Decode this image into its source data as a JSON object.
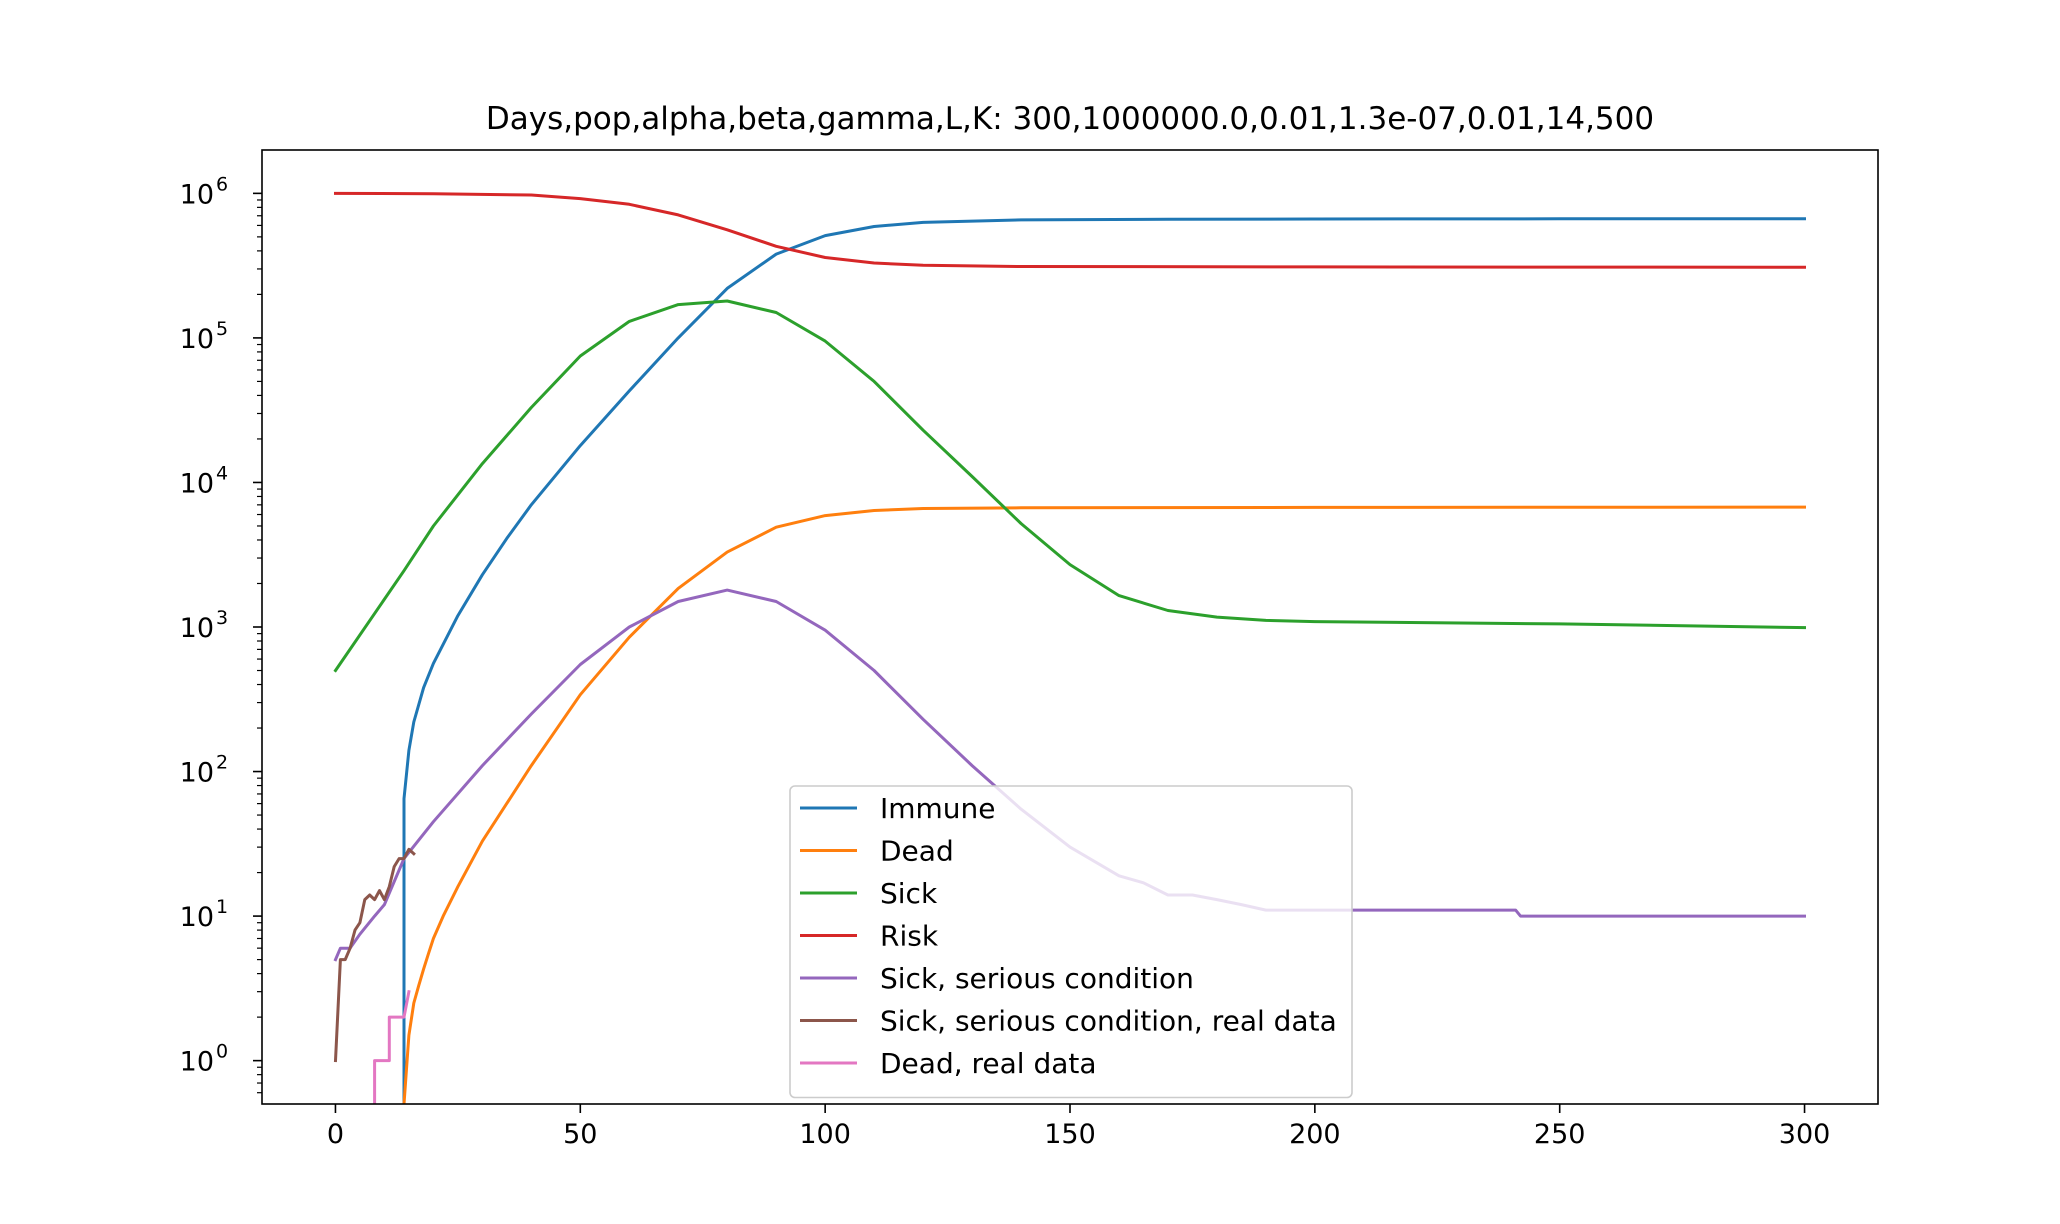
{
  "chart_data": {
    "type": "line",
    "title": "Days,pop,alpha,beta,gamma,L,K: 300,1000000.0,0.01,1.3e-07,0.01,14,500",
    "xlabel": "",
    "ylabel": "",
    "xlim": [
      -15,
      315
    ],
    "ylog": true,
    "ylim_log10": [
      -0.3,
      6.3
    ],
    "x_ticks": [
      0,
      50,
      100,
      150,
      200,
      250,
      300
    ],
    "y_ticks_exponents": [
      0,
      1,
      2,
      3,
      4,
      5,
      6
    ],
    "y_tick_base": "10",
    "grid": false,
    "legend_position": "lower center",
    "series": [
      {
        "name": "Immune",
        "color": "#1f77b4",
        "points": [
          [
            14,
            0.1
          ],
          [
            14,
            65
          ],
          [
            15,
            140
          ],
          [
            16,
            220
          ],
          [
            18,
            380
          ],
          [
            20,
            560
          ],
          [
            25,
            1200
          ],
          [
            30,
            2300
          ],
          [
            35,
            4100
          ],
          [
            40,
            7000
          ],
          [
            50,
            18000
          ],
          [
            60,
            43000
          ],
          [
            70,
            100000
          ],
          [
            80,
            220000
          ],
          [
            90,
            380000
          ],
          [
            100,
            510000
          ],
          [
            110,
            590000
          ],
          [
            120,
            630000
          ],
          [
            140,
            655000
          ],
          [
            170,
            662000
          ],
          [
            200,
            665000
          ],
          [
            250,
            667000
          ],
          [
            300,
            668000
          ]
        ]
      },
      {
        "name": "Dead",
        "color": "#ff7f0e",
        "points": [
          [
            14,
            0.3
          ],
          [
            14,
            0.5
          ],
          [
            15,
            1.5
          ],
          [
            16,
            2.5
          ],
          [
            17,
            3.3
          ],
          [
            18,
            4.3
          ],
          [
            19,
            5.5
          ],
          [
            20,
            7
          ],
          [
            22,
            10
          ],
          [
            25,
            16
          ],
          [
            30,
            33
          ],
          [
            40,
            110
          ],
          [
            50,
            340
          ],
          [
            60,
            850
          ],
          [
            70,
            1850
          ],
          [
            80,
            3300
          ],
          [
            90,
            4900
          ],
          [
            100,
            5900
          ],
          [
            110,
            6400
          ],
          [
            120,
            6600
          ],
          [
            140,
            6680
          ],
          [
            200,
            6720
          ],
          [
            300,
            6750
          ]
        ]
      },
      {
        "name": "Sick",
        "color": "#2ca02c",
        "points": [
          [
            0,
            500
          ],
          [
            14,
            2450
          ],
          [
            20,
            5000
          ],
          [
            30,
            13500
          ],
          [
            40,
            33000
          ],
          [
            50,
            75000
          ],
          [
            60,
            130000
          ],
          [
            70,
            170000
          ],
          [
            80,
            180000
          ],
          [
            90,
            150000
          ],
          [
            100,
            95000
          ],
          [
            110,
            50000
          ],
          [
            120,
            23000
          ],
          [
            130,
            11000
          ],
          [
            140,
            5200
          ],
          [
            150,
            2700
          ],
          [
            160,
            1650
          ],
          [
            170,
            1300
          ],
          [
            180,
            1170
          ],
          [
            190,
            1110
          ],
          [
            200,
            1090
          ],
          [
            250,
            1050
          ],
          [
            300,
            990
          ]
        ]
      },
      {
        "name": "Risk",
        "color": "#d62728",
        "points": [
          [
            0,
            1000000
          ],
          [
            20,
            995000
          ],
          [
            40,
            975000
          ],
          [
            50,
            920000
          ],
          [
            60,
            840000
          ],
          [
            70,
            710000
          ],
          [
            80,
            560000
          ],
          [
            90,
            430000
          ],
          [
            100,
            360000
          ],
          [
            110,
            330000
          ],
          [
            120,
            318000
          ],
          [
            140,
            312000
          ],
          [
            200,
            310000
          ],
          [
            300,
            308000
          ]
        ]
      },
      {
        "name": "Sick, serious condition",
        "color": "#9467bd",
        "points": [
          [
            0,
            5
          ],
          [
            1,
            6
          ],
          [
            3,
            6
          ],
          [
            5,
            7.5
          ],
          [
            8,
            10
          ],
          [
            10,
            12
          ],
          [
            14,
            25
          ],
          [
            20,
            45
          ],
          [
            30,
            110
          ],
          [
            40,
            250
          ],
          [
            50,
            550
          ],
          [
            60,
            1000
          ],
          [
            70,
            1500
          ],
          [
            80,
            1800
          ],
          [
            90,
            1500
          ],
          [
            100,
            950
          ],
          [
            110,
            500
          ],
          [
            120,
            230
          ],
          [
            130,
            110
          ],
          [
            140,
            55
          ],
          [
            150,
            30
          ],
          [
            160,
            19
          ],
          [
            165,
            17
          ],
          [
            170,
            14
          ],
          [
            175,
            14
          ],
          [
            180,
            13
          ],
          [
            185,
            12
          ],
          [
            190,
            11
          ],
          [
            200,
            11
          ],
          [
            241,
            11
          ],
          [
            242,
            10
          ],
          [
            300,
            10
          ]
        ]
      },
      {
        "name": "Sick, serious condition, real data",
        "color": "#8c564b",
        "points": [
          [
            0,
            1
          ],
          [
            1,
            5
          ],
          [
            2,
            5
          ],
          [
            3,
            6
          ],
          [
            4,
            8
          ],
          [
            5,
            9
          ],
          [
            6,
            13
          ],
          [
            7,
            14
          ],
          [
            8,
            13
          ],
          [
            9,
            15
          ],
          [
            10,
            13
          ],
          [
            11,
            16
          ],
          [
            12,
            22
          ],
          [
            13,
            25
          ],
          [
            14,
            25
          ],
          [
            15,
            29
          ],
          [
            16,
            27
          ]
        ]
      },
      {
        "name": "Dead, real data",
        "color": "#e377c2",
        "points": [
          [
            8,
            0.5
          ],
          [
            8,
            1
          ],
          [
            11,
            1
          ],
          [
            11,
            2
          ],
          [
            13,
            2
          ],
          [
            13,
            2
          ],
          [
            14,
            2
          ],
          [
            15,
            3
          ]
        ]
      }
    ]
  }
}
